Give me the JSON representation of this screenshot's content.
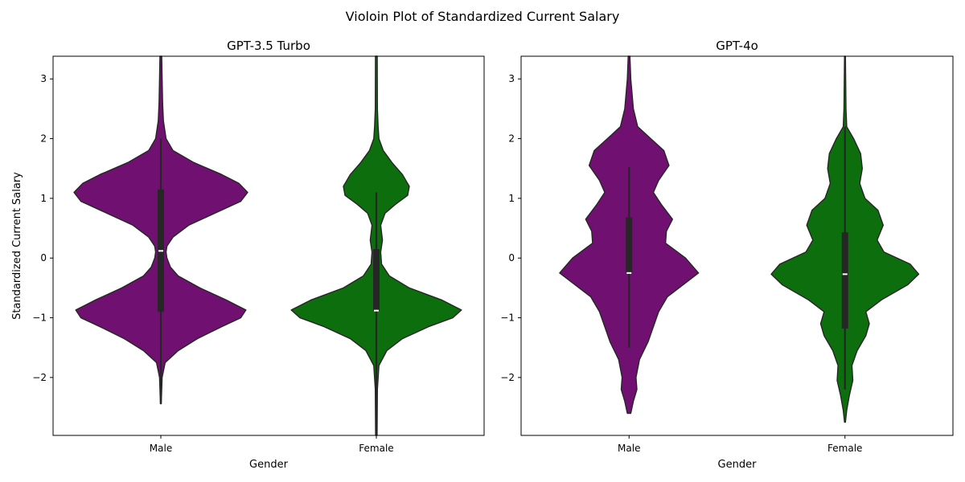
{
  "figure": {
    "suptitle": "Violoin Plot of Standardized Current Salary"
  },
  "chart_data": [
    {
      "type": "violin",
      "title": "GPT-3.5 Turbo",
      "xlabel": "Gender",
      "ylabel": "Standardized Current Salary",
      "categories": [
        "Male",
        "Female"
      ],
      "ylim": [
        -2.97,
        3.38
      ],
      "yticks": [
        -2,
        -1,
        0,
        1,
        2,
        3
      ],
      "grid": false,
      "violins": [
        {
          "category": "Male",
          "color": "#701070",
          "density": [
            [
              3.38,
              0.01
            ],
            [
              3.0,
              0.015
            ],
            [
              2.6,
              0.02
            ],
            [
              2.3,
              0.03
            ],
            [
              2.0,
              0.06
            ],
            [
              1.8,
              0.14
            ],
            [
              1.6,
              0.38
            ],
            [
              1.4,
              0.7
            ],
            [
              1.25,
              0.9
            ],
            [
              1.1,
              1.0
            ],
            [
              0.95,
              0.92
            ],
            [
              0.75,
              0.62
            ],
            [
              0.55,
              0.32
            ],
            [
              0.35,
              0.14
            ],
            [
              0.2,
              0.07
            ],
            [
              0.1,
              0.06
            ],
            [
              0.0,
              0.07
            ],
            [
              -0.15,
              0.11
            ],
            [
              -0.3,
              0.2
            ],
            [
              -0.5,
              0.45
            ],
            [
              -0.7,
              0.75
            ],
            [
              -0.87,
              0.98
            ],
            [
              -1.0,
              0.92
            ],
            [
              -1.15,
              0.7
            ],
            [
              -1.35,
              0.42
            ],
            [
              -1.55,
              0.2
            ],
            [
              -1.75,
              0.05
            ],
            [
              -2.0,
              0.015
            ],
            [
              -2.44,
              0.005
            ]
          ],
          "box": {
            "q1": -0.9,
            "median": 0.12,
            "q3": 1.15,
            "whisker_low": -2.44,
            "whisker_high": 2.0
          }
        },
        {
          "category": "Female",
          "color": "#0d6e0d",
          "density": [
            [
              3.38,
              0.01
            ],
            [
              2.5,
              0.012
            ],
            [
              2.2,
              0.02
            ],
            [
              2.0,
              0.03
            ],
            [
              1.8,
              0.08
            ],
            [
              1.6,
              0.18
            ],
            [
              1.4,
              0.3
            ],
            [
              1.2,
              0.38
            ],
            [
              1.05,
              0.36
            ],
            [
              0.9,
              0.22
            ],
            [
              0.75,
              0.1
            ],
            [
              0.55,
              0.05
            ],
            [
              0.3,
              0.07
            ],
            [
              0.1,
              0.05
            ],
            [
              -0.1,
              0.06
            ],
            [
              -0.3,
              0.15
            ],
            [
              -0.5,
              0.38
            ],
            [
              -0.7,
              0.75
            ],
            [
              -0.87,
              0.98
            ],
            [
              -1.0,
              0.88
            ],
            [
              -1.15,
              0.6
            ],
            [
              -1.35,
              0.3
            ],
            [
              -1.55,
              0.12
            ],
            [
              -1.8,
              0.03
            ],
            [
              -2.2,
              0.012
            ],
            [
              -2.97,
              0.008
            ]
          ],
          "box": {
            "q1": -0.88,
            "median": -0.88,
            "q3": 0.15,
            "whisker_low": -2.97,
            "whisker_high": 1.1
          }
        }
      ]
    },
    {
      "type": "violin",
      "title": "GPT-4o",
      "xlabel": "Gender",
      "ylabel": "",
      "categories": [
        "Male",
        "Female"
      ],
      "ylim": [
        -2.97,
        3.38
      ],
      "yticks": [
        -2,
        -1,
        0,
        1,
        2,
        3
      ],
      "grid": false,
      "violins": [
        {
          "category": "Male",
          "color": "#701070",
          "density": [
            [
              3.38,
              0.01
            ],
            [
              3.0,
              0.02
            ],
            [
              2.5,
              0.05
            ],
            [
              2.2,
              0.1
            ],
            [
              2.0,
              0.25
            ],
            [
              1.8,
              0.4
            ],
            [
              1.55,
              0.46
            ],
            [
              1.3,
              0.34
            ],
            [
              1.1,
              0.28
            ],
            [
              0.9,
              0.37
            ],
            [
              0.65,
              0.5
            ],
            [
              0.45,
              0.43
            ],
            [
              0.25,
              0.42
            ],
            [
              0.0,
              0.65
            ],
            [
              -0.25,
              0.8
            ],
            [
              -0.45,
              0.62
            ],
            [
              -0.65,
              0.44
            ],
            [
              -0.9,
              0.34
            ],
            [
              -1.15,
              0.28
            ],
            [
              -1.4,
              0.22
            ],
            [
              -1.7,
              0.12
            ],
            [
              -2.0,
              0.08
            ],
            [
              -2.2,
              0.09
            ],
            [
              -2.4,
              0.05
            ],
            [
              -2.6,
              0.02
            ]
          ],
          "box": {
            "q1": -0.25,
            "median": -0.25,
            "q3": 0.68,
            "whisker_low": -1.5,
            "whisker_high": 1.52
          }
        },
        {
          "category": "Female",
          "color": "#0d6e0d",
          "density": [
            [
              3.38,
              0.005
            ],
            [
              3.0,
              0.008
            ],
            [
              2.5,
              0.012
            ],
            [
              2.2,
              0.02
            ],
            [
              2.0,
              0.1
            ],
            [
              1.75,
              0.18
            ],
            [
              1.5,
              0.2
            ],
            [
              1.25,
              0.17
            ],
            [
              1.0,
              0.23
            ],
            [
              0.8,
              0.38
            ],
            [
              0.55,
              0.44
            ],
            [
              0.3,
              0.37
            ],
            [
              0.1,
              0.45
            ],
            [
              -0.1,
              0.75
            ],
            [
              -0.27,
              0.85
            ],
            [
              -0.45,
              0.72
            ],
            [
              -0.7,
              0.42
            ],
            [
              -0.9,
              0.24
            ],
            [
              -1.1,
              0.28
            ],
            [
              -1.3,
              0.24
            ],
            [
              -1.55,
              0.14
            ],
            [
              -1.8,
              0.08
            ],
            [
              -2.05,
              0.09
            ],
            [
              -2.3,
              0.05
            ],
            [
              -2.55,
              0.02
            ],
            [
              -2.75,
              0.005
            ]
          ],
          "box": {
            "q1": -1.18,
            "median": -0.27,
            "q3": 0.43,
            "whisker_low": -2.2,
            "whisker_high": 2.2
          }
        }
      ]
    }
  ]
}
